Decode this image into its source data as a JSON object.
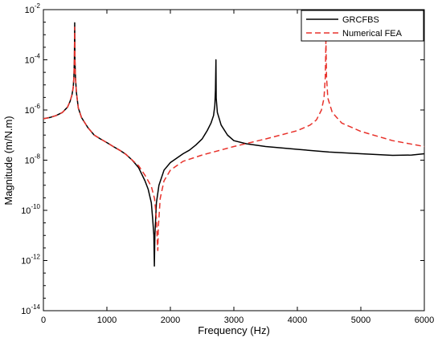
{
  "chart_data": {
    "type": "line",
    "xlabel": "Frequency (Hz)",
    "ylabel": "Magnitude (m/N.m)",
    "xlim": [
      0,
      6000
    ],
    "ylim_log10": [
      -14,
      -2
    ],
    "y_scale": "log",
    "x_ticks": [
      0,
      1000,
      2000,
      3000,
      4000,
      5000,
      6000
    ],
    "x_tick_labels": [
      "0",
      "1000",
      "2000",
      "3000",
      "4000",
      "5000",
      "6000"
    ],
    "y_ticks_log10": [
      -14,
      -12,
      -10,
      -8,
      -6,
      -4,
      -2
    ],
    "y_tick_labels": [
      {
        "base": "10",
        "exp": "-14"
      },
      {
        "base": "10",
        "exp": "-12"
      },
      {
        "base": "10",
        "exp": "-10"
      },
      {
        "base": "10",
        "exp": "-8"
      },
      {
        "base": "10",
        "exp": "-6"
      },
      {
        "base": "10",
        "exp": "-4"
      },
      {
        "base": "10",
        "exp": "-2"
      }
    ],
    "grid": false,
    "legend_position": "top-right",
    "series": [
      {
        "name": "GRCFBS",
        "color": "#000000",
        "style": "solid",
        "points": [
          [
            0,
            4.5e-07
          ],
          [
            100,
            5e-07
          ],
          [
            200,
            6e-07
          ],
          [
            300,
            8e-07
          ],
          [
            380,
            1.3e-06
          ],
          [
            420,
            2.2e-06
          ],
          [
            450,
            4e-06
          ],
          [
            470,
            8e-06
          ],
          [
            480,
            2e-05
          ],
          [
            488,
            0.0001
          ],
          [
            493,
            0.003
          ],
          [
            497,
            0.0001
          ],
          [
            505,
            2e-05
          ],
          [
            520,
            5e-06
          ],
          [
            550,
            1.2e-06
          ],
          [
            600,
            5e-07
          ],
          [
            700,
            2e-07
          ],
          [
            800,
            1e-07
          ],
          [
            900,
            7e-08
          ],
          [
            1000,
            5e-08
          ],
          [
            1100,
            3.5e-08
          ],
          [
            1200,
            2.5e-08
          ],
          [
            1300,
            1.7e-08
          ],
          [
            1400,
            1e-08
          ],
          [
            1500,
            5e-09
          ],
          [
            1600,
            1.5e-09
          ],
          [
            1650,
            7e-10
          ],
          [
            1700,
            2e-10
          ],
          [
            1720,
            5e-11
          ],
          [
            1740,
            1e-11
          ],
          [
            1748,
            6e-13
          ],
          [
            1756,
            1e-11
          ],
          [
            1780,
            2e-10
          ],
          [
            1820,
            1e-09
          ],
          [
            1900,
            4e-09
          ],
          [
            2000,
            8e-09
          ],
          [
            2100,
            1.2e-08
          ],
          [
            2200,
            1.8e-08
          ],
          [
            2300,
            2.5e-08
          ],
          [
            2400,
            4e-08
          ],
          [
            2500,
            7e-08
          ],
          [
            2580,
            1.5e-07
          ],
          [
            2640,
            3e-07
          ],
          [
            2680,
            6e-07
          ],
          [
            2700,
            1.5e-06
          ],
          [
            2710,
            6e-06
          ],
          [
            2718,
            0.0001
          ],
          [
            2722,
            3e-06
          ],
          [
            2740,
            8e-07
          ],
          [
            2800,
            2.5e-07
          ],
          [
            2900,
            1e-07
          ],
          [
            3000,
            6e-08
          ],
          [
            3200,
            4.5e-08
          ],
          [
            3500,
            3.5e-08
          ],
          [
            4000,
            2.7e-08
          ],
          [
            4500,
            2.1e-08
          ],
          [
            5000,
            1.8e-08
          ],
          [
            5500,
            1.55e-08
          ],
          [
            5800,
            1.6e-08
          ],
          [
            6000,
            1.8e-08
          ]
        ]
      },
      {
        "name": "Numerical FEA",
        "color": "#e8322b",
        "style": "dashed",
        "points": [
          [
            0,
            4.5e-07
          ],
          [
            100,
            5e-07
          ],
          [
            200,
            6e-07
          ],
          [
            300,
            8e-07
          ],
          [
            380,
            1.3e-06
          ],
          [
            420,
            2.2e-06
          ],
          [
            450,
            4e-06
          ],
          [
            470,
            8e-06
          ],
          [
            480,
            2e-05
          ],
          [
            488,
            0.0001
          ],
          [
            493,
            0.002
          ],
          [
            497,
            0.0001
          ],
          [
            505,
            2e-05
          ],
          [
            520,
            5e-06
          ],
          [
            550,
            1.2e-06
          ],
          [
            600,
            5e-07
          ],
          [
            700,
            2e-07
          ],
          [
            800,
            1e-07
          ],
          [
            900,
            7e-08
          ],
          [
            1000,
            5e-08
          ],
          [
            1100,
            3.5e-08
          ],
          [
            1200,
            2.5e-08
          ],
          [
            1300,
            1.7e-08
          ],
          [
            1400,
            1e-08
          ],
          [
            1500,
            6e-09
          ],
          [
            1600,
            2.5e-09
          ],
          [
            1700,
            9e-10
          ],
          [
            1750,
            3e-10
          ],
          [
            1780,
            5e-11
          ],
          [
            1795,
            5e-12
          ],
          [
            1802,
            2.5e-12
          ],
          [
            1810,
            2e-11
          ],
          [
            1840,
            3e-10
          ],
          [
            1900,
            1.5e-09
          ],
          [
            2000,
            4e-09
          ],
          [
            2200,
            9e-09
          ],
          [
            2500,
            1.6e-08
          ],
          [
            3000,
            3.5e-08
          ],
          [
            3500,
            7e-08
          ],
          [
            4000,
            1.5e-07
          ],
          [
            4200,
            2.5e-07
          ],
          [
            4300,
            4e-07
          ],
          [
            4380,
            1e-06
          ],
          [
            4420,
            3e-06
          ],
          [
            4440,
            2e-05
          ],
          [
            4450,
            0.0006
          ],
          [
            4460,
            2e-05
          ],
          [
            4480,
            3e-06
          ],
          [
            4550,
            8e-07
          ],
          [
            4700,
            3e-07
          ],
          [
            5000,
            1.4e-07
          ],
          [
            5500,
            6e-08
          ],
          [
            6000,
            3.5e-08
          ]
        ]
      }
    ]
  }
}
